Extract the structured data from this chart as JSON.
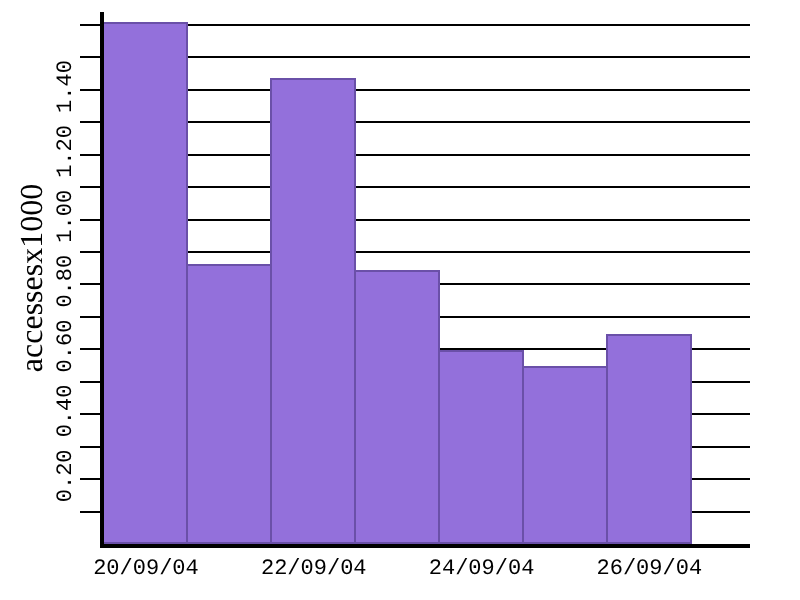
{
  "chart_data": {
    "type": "bar",
    "ylabel": "accessesx1000",
    "categories": [
      "20/09/04",
      null,
      "22/09/04",
      null,
      "24/09/04",
      null,
      "26/09/04"
    ],
    "values": [
      1.6,
      0.86,
      1.43,
      0.84,
      0.59,
      0.54,
      0.64
    ],
    "color": "#9370db",
    "ylim": [
      0,
      1.64
    ],
    "yticks": [
      {
        "value": 0.1,
        "label": null
      },
      {
        "value": 0.2,
        "label": "0.20"
      },
      {
        "value": 0.3,
        "label": null
      },
      {
        "value": 0.4,
        "label": "0.40"
      },
      {
        "value": 0.5,
        "label": null
      },
      {
        "value": 0.6,
        "label": "0.60"
      },
      {
        "value": 0.7,
        "label": null
      },
      {
        "value": 0.8,
        "label": "0.80"
      },
      {
        "value": 0.9,
        "label": null
      },
      {
        "value": 1.0,
        "label": "1.00"
      },
      {
        "value": 1.1,
        "label": null
      },
      {
        "value": 1.2,
        "label": "1.20"
      },
      {
        "value": 1.3,
        "label": null
      },
      {
        "value": 1.4,
        "label": "1.40"
      },
      {
        "value": 1.5,
        "label": null
      },
      {
        "value": 1.6,
        "label": null
      }
    ],
    "grid": "y"
  }
}
